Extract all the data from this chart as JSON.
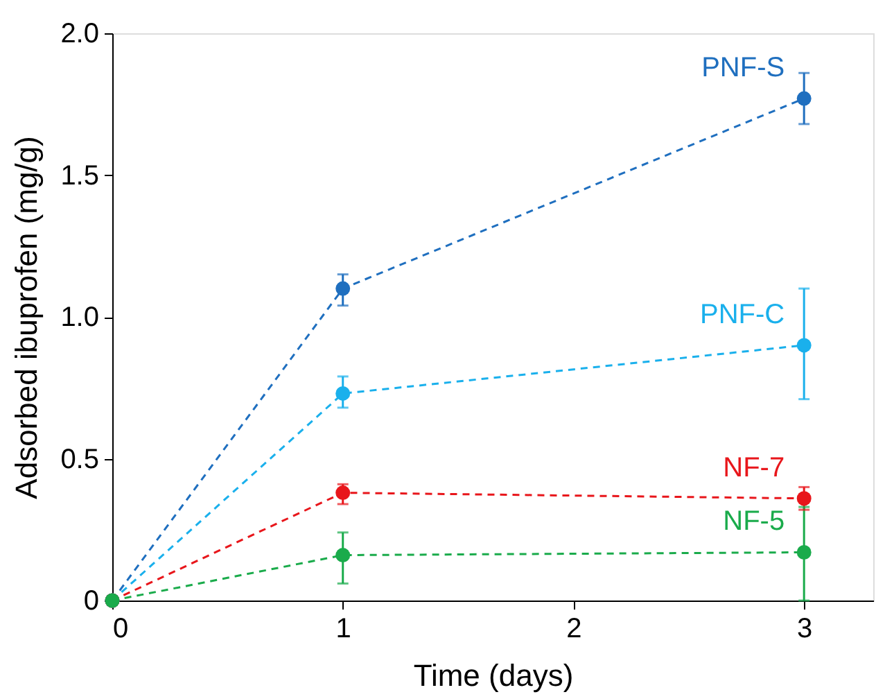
{
  "chart_data": {
    "type": "line",
    "xlabel": "Time (days)",
    "ylabel": "Adsorbed ibuprofen (mg/g)",
    "xlim": [
      0,
      3.3
    ],
    "xticks": [
      0,
      1,
      2,
      3
    ],
    "ylim": [
      0,
      2.0
    ],
    "yticks": [
      {
        "value": 0,
        "label": "0"
      },
      0.5,
      {
        "value": 1,
        "label": "1.0"
      },
      1.5,
      {
        "value": 2,
        "label": "2.0"
      }
    ],
    "x": [
      0,
      1,
      3
    ],
    "marker": "circle",
    "line_style": "dashed",
    "grid": false,
    "legend": false,
    "series": [
      {
        "name": "PNF-S",
        "color": "#1f6fbf",
        "values": [
          0,
          1.1,
          1.77
        ],
        "errors": [
          null,
          [
            1.04,
            1.15
          ],
          [
            1.68,
            1.86
          ]
        ]
      },
      {
        "name": "PNF-C",
        "color": "#1ab0ec",
        "values": [
          0,
          0.73,
          0.9
        ],
        "errors": [
          null,
          [
            0.68,
            0.79
          ],
          [
            0.71,
            1.1
          ]
        ]
      },
      {
        "name": "NF-7",
        "color": "#e8161b",
        "values": [
          0,
          0.38,
          0.36
        ],
        "errors": [
          null,
          [
            0.34,
            0.41
          ],
          [
            0.32,
            0.4
          ]
        ]
      },
      {
        "name": "NF-5",
        "color": "#1aab4b",
        "values": [
          0,
          0.16,
          0.17
        ],
        "errors": [
          null,
          [
            0.06,
            0.24
          ],
          [
            0.0,
            0.33
          ]
        ]
      }
    ]
  }
}
